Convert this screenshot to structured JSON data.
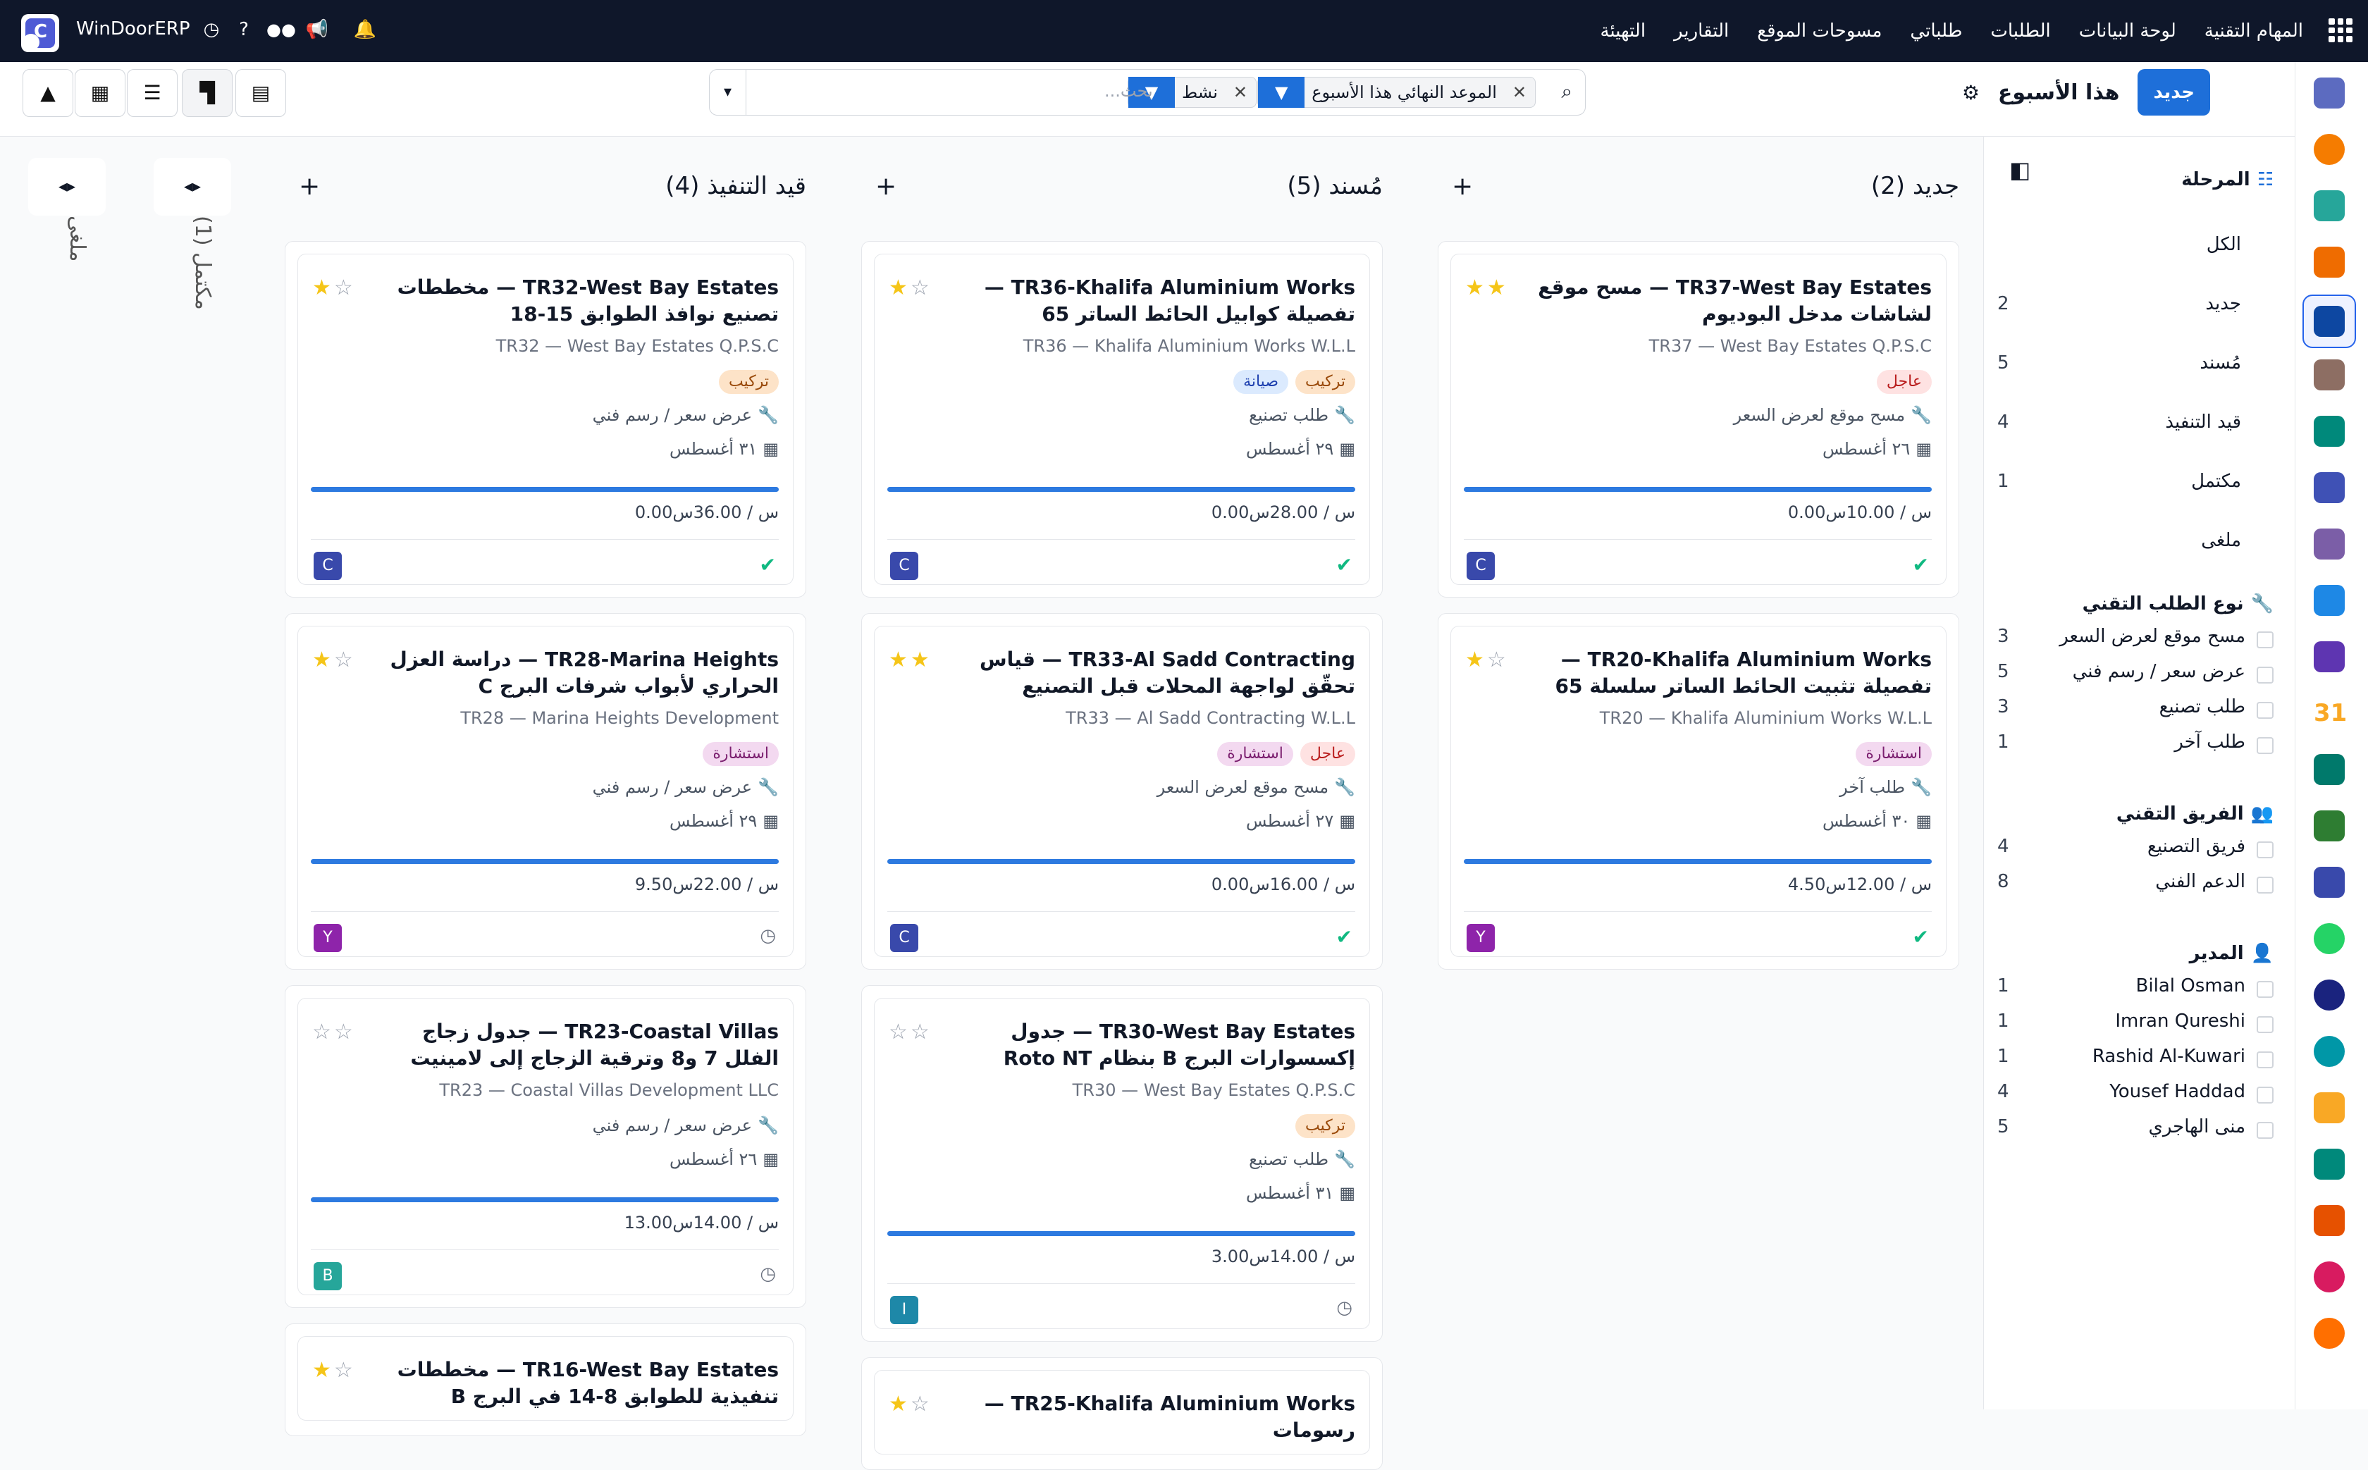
{
  "topbar": {
    "brand": "WinDoorERP",
    "nav": [
      "المهام التقنية",
      "لوحة البيانات",
      "الطلبات",
      "طلباتي",
      "مسوحات الموقع",
      "التقارير",
      "التهيئة"
    ]
  },
  "control": {
    "new_label": "جديد",
    "title": "هذا الأسبوع",
    "filters": [
      "الموعد النهائي هذا الأسبوع",
      "نشط"
    ],
    "placeholder": "بحث..."
  },
  "sidebar": {
    "stage_title": "المرحلة",
    "stages": [
      {
        "label": "الكل",
        "count": ""
      },
      {
        "label": "جديد",
        "count": "2"
      },
      {
        "label": "مُسند",
        "count": "5"
      },
      {
        "label": "قيد التنفيذ",
        "count": "4"
      },
      {
        "label": "مكتمل",
        "count": "1"
      },
      {
        "label": "ملغى",
        "count": ""
      }
    ],
    "type_title": "نوع الطلب التقني",
    "types": [
      {
        "label": "مسح موقع لعرض السعر",
        "count": "3"
      },
      {
        "label": "عرض سعر / رسم فني",
        "count": "5"
      },
      {
        "label": "طلب تصنيع",
        "count": "3"
      },
      {
        "label": "طلب آخر",
        "count": "1"
      }
    ],
    "team_title": "الفريق التقني",
    "teams": [
      {
        "label": "فريق التصنيع",
        "count": "4"
      },
      {
        "label": "الدعم الفني",
        "count": "8"
      }
    ],
    "manager_title": "المدير",
    "managers": [
      {
        "label": "Bilal Osman",
        "count": "1"
      },
      {
        "label": "Imran Qureshi",
        "count": "1"
      },
      {
        "label": "Rashid Al-Kuwari",
        "count": "1"
      },
      {
        "label": "Yousef Haddad",
        "count": "4"
      },
      {
        "label": "منى الهاجري",
        "count": "5"
      }
    ]
  },
  "folded": [
    {
      "label": "مكتمل (1)"
    },
    {
      "label": "ملغى"
    }
  ],
  "columns": [
    {
      "title": "جديد (2)",
      "cards": [
        {
          "title": "TR37-West Bay Estates — مسح موقع لشاشات مدخل البوديوم",
          "sub": "TR37 — West Bay Estates Q.P.S.C",
          "stars": 2,
          "tags": [
            {
              "t": "عاجل",
              "c": "urgent"
            }
          ],
          "type": "مسح موقع لعرض السعر",
          "date": "٢٦ أغسطس",
          "hours": "0.00س / 10.00س",
          "progress": 1,
          "avatar": "C",
          "avatar_color": "#3949ab",
          "status": "done"
        },
        {
          "title": "TR20-Khalifa Aluminium Works — تفصيلة تثبيت الحائط الساتر سلسلة 65",
          "sub": "TR20 — Khalifa Aluminium Works W.L.L",
          "stars": 1,
          "tags": [
            {
              "t": "استشارة",
              "c": "consult"
            }
          ],
          "type": "طلب آخر",
          "date": "٣٠ أغسطس",
          "hours": "4.50س / 12.00س",
          "progress": 1,
          "avatar": "Y",
          "avatar_color": "#8e24aa",
          "status": "done"
        }
      ]
    },
    {
      "title": "مُسند (5)",
      "cards": [
        {
          "title": "TR36-Khalifa Aluminium Works — تفصيلة كوابيل الحائط الساتر 65",
          "sub": "TR36 — Khalifa Aluminium Works W.L.L",
          "stars": 1,
          "tags": [
            {
              "t": "تركيب",
              "c": "install"
            },
            {
              "t": "صيانة",
              "c": "maint"
            }
          ],
          "type": "طلب تصنيع",
          "date": "٢٩ أغسطس",
          "hours": "0.00س / 28.00س",
          "progress": 1,
          "avatar": "C",
          "avatar_color": "#3949ab",
          "status": "done"
        },
        {
          "title": "TR33-Al Sadd Contracting — قياس تحقّق لواجهة المحلات قبل التصنيع",
          "sub": "TR33 — Al Sadd Contracting W.L.L",
          "stars": 2,
          "tags": [
            {
              "t": "عاجل",
              "c": "urgent"
            },
            {
              "t": "استشارة",
              "c": "consult"
            }
          ],
          "type": "مسح موقع لعرض السعر",
          "date": "٢٧ أغسطس",
          "hours": "0.00س / 16.00س",
          "progress": 1,
          "avatar": "C",
          "avatar_color": "#3949ab",
          "status": "done"
        },
        {
          "title": "TR30-West Bay Estates — جدول إكسسوارات البرج B بنظام Roto NT",
          "sub": "TR30 — West Bay Estates Q.P.S.C",
          "stars": 0,
          "tags": [
            {
              "t": "تركيب",
              "c": "install"
            }
          ],
          "type": "طلب تصنيع",
          "date": "٣١ أغسطس",
          "hours": "3.00س / 14.00س",
          "progress": 1,
          "avatar": "I",
          "avatar_color": "#1e88a8",
          "status": "pending"
        },
        {
          "title": "TR25-Khalifa Aluminium Works — رسومات",
          "sub": "",
          "stars": 1,
          "tags": [],
          "type": "",
          "date": "",
          "hours": "",
          "progress": 0,
          "avatar": "",
          "avatar_color": "#3949ab",
          "status": ""
        }
      ]
    },
    {
      "title": "قيد التنفيذ (4)",
      "cards": [
        {
          "title": "TR32-West Bay Estates — مخططات تصنيع نوافذ الطوابق 15-18",
          "sub": "TR32 — West Bay Estates Q.P.S.C",
          "stars": 1,
          "tags": [
            {
              "t": "تركيب",
              "c": "install"
            }
          ],
          "type": "عرض سعر / رسم فني",
          "date": "٣١ أغسطس",
          "hours": "0.00س / 36.00س",
          "progress": 1,
          "avatar": "C",
          "avatar_color": "#3949ab",
          "status": "done"
        },
        {
          "title": "TR28-Marina Heights — دراسة العزل الحراري لأبواب شرفات البرج C",
          "sub": "TR28 — Marina Heights Development",
          "stars": 1,
          "tags": [
            {
              "t": "استشارة",
              "c": "consult"
            }
          ],
          "type": "عرض سعر / رسم فني",
          "date": "٢٩ أغسطس",
          "hours": "9.50س / 22.00س",
          "progress": 1,
          "avatar": "Y",
          "avatar_color": "#8e24aa",
          "status": "pending"
        },
        {
          "title": "TR23-Coastal Villas — جدول زجاج الفلل 7 و8 وترقية الزجاج إلى لامينيت",
          "sub": "TR23 — Coastal Villas Development LLC",
          "stars": 0,
          "tags": [],
          "type": "عرض سعر / رسم فني",
          "date": "٢٦ أغسطس",
          "hours": "13.00س / 14.00س",
          "progress": 1,
          "avatar": "B",
          "avatar_color": "#26a69a",
          "status": "pending"
        },
        {
          "title": "TR16-West Bay Estates — مخططات تنفيذية للطوابق 8-14 في البرج B",
          "sub": "",
          "stars": 1,
          "tags": [],
          "type": "",
          "date": "",
          "hours": "",
          "progress": 0,
          "avatar": "",
          "avatar_color": "#3949ab",
          "status": ""
        }
      ]
    }
  ]
}
